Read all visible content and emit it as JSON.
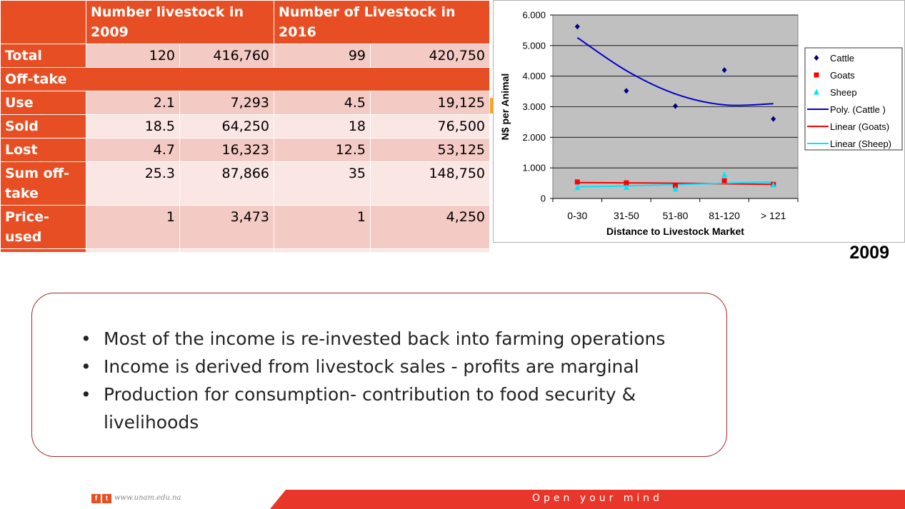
{
  "table": {
    "header": {
      "col1": "",
      "group2009": "Number livestock in 2009",
      "group2016": "Number of Livestock in 2016"
    },
    "rows": [
      {
        "label": "Total",
        "c1": "120",
        "c2": "416,760",
        "c3": "99",
        "c4": "420,750"
      },
      {
        "label": "Use",
        "c1": "2.1",
        "c2": "7,293",
        "c3": "4.5",
        "c4": "19,125"
      },
      {
        "label": "Sold",
        "c1": "18.5",
        "c2": "64,250",
        "c3": "18",
        "c4": "76,500"
      },
      {
        "label": "Lost",
        "c1": "4.7",
        "c2": "16,323",
        "c3": "12.5",
        "c4": "53,125"
      },
      {
        "label": "Sum off-take",
        "c1": "25.3",
        "c2": "87,866",
        "c3": "35",
        "c4": "148,750"
      },
      {
        "label": "Price-used",
        "c1": "1",
        "c2": "3,473",
        "c3": "1",
        "c4": "4,250"
      },
      {
        "label": "",
        "c1": "",
        "c2": "",
        "c3": "",
        "c4": ""
      }
    ],
    "section_label": "Off-take"
  },
  "chart_data": {
    "type": "scatter",
    "title": "",
    "xlabel": "Distance to Livestock Market",
    "ylabel": "N$ per Animal",
    "categories": [
      "0-30",
      "31-50",
      "51-80",
      "81-120",
      "> 121"
    ],
    "ylim": [
      0,
      6000
    ],
    "yticks": [
      "0",
      "1.000",
      "2.000",
      "3.000",
      "4.000",
      "5.000",
      "6.000"
    ],
    "ytick_values": [
      0,
      1000,
      2000,
      3000,
      4000,
      5000,
      6000
    ],
    "grid": true,
    "legend_position": "right",
    "series": [
      {
        "name": "Cattle",
        "marker": "diamond",
        "color": "#000080",
        "values": [
          5620,
          3520,
          3020,
          4200,
          2600
        ]
      },
      {
        "name": "Goats",
        "marker": "square",
        "color": "#ff0000",
        "values": [
          540,
          510,
          420,
          580,
          460
        ]
      },
      {
        "name": "Sheep",
        "marker": "triangle",
        "color": "#00e5ff",
        "values": [
          360,
          360,
          310,
          780,
          440
        ]
      }
    ],
    "trendlines": [
      {
        "name": "Poly. (Cattle )",
        "color": "#0000cc",
        "values": [
          5260,
          4180,
          3420,
          3060,
          3100
        ]
      },
      {
        "name": "Linear (Goats)",
        "color": "#ff0000",
        "values": [
          520,
          510,
          500,
          480,
          460
        ]
      },
      {
        "name": "Linear (Sheep)",
        "color": "#00e5ff",
        "values": [
          380,
          410,
          450,
          500,
          540
        ]
      }
    ]
  },
  "year_label": "2009",
  "bullets": [
    "Most of the income is re-invested back into farming operations",
    "Income is derived from livestock sales - profits are marginal",
    "Production for consumption- contribution to food security & livelihoods"
  ],
  "footer": {
    "icons": [
      "facebook-icon",
      "twitter-icon"
    ],
    "url": "www.unam.edu.na",
    "tagline": "Open your mind",
    "bar_color": "#e8362a"
  }
}
